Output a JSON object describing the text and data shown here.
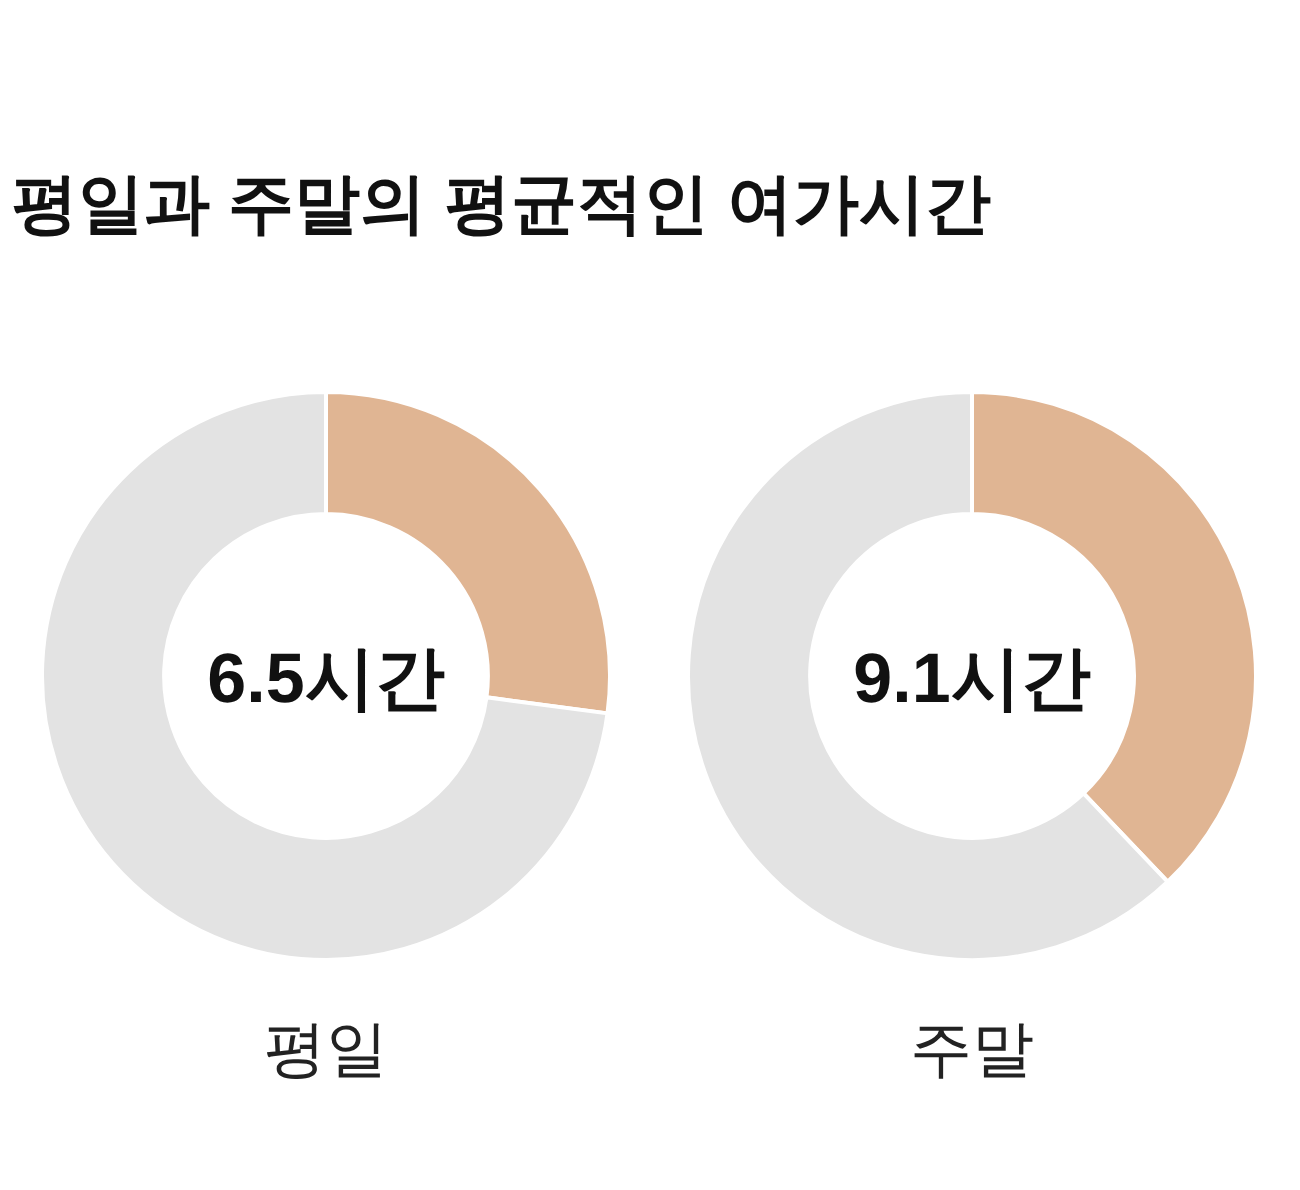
{
  "chart_data": [
    {
      "type": "donut",
      "title": "평일과 주말의 평균적인 여가시간",
      "categories": [
        null,
        null
      ],
      "values": [
        27.1,
        72.9
      ],
      "colors": [
        "#e0b593",
        "#e3e3e3"
      ],
      "annotations": [
        "6.5시간"
      ],
      "xlabel": "평일"
    },
    {
      "type": "donut",
      "categories": [
        null,
        null
      ],
      "values": [
        37.9,
        62.1
      ],
      "colors": [
        "#e0b593",
        "#e3e3e3"
      ],
      "annotations": [
        "9.1시간"
      ],
      "xlabel": "주말"
    }
  ]
}
